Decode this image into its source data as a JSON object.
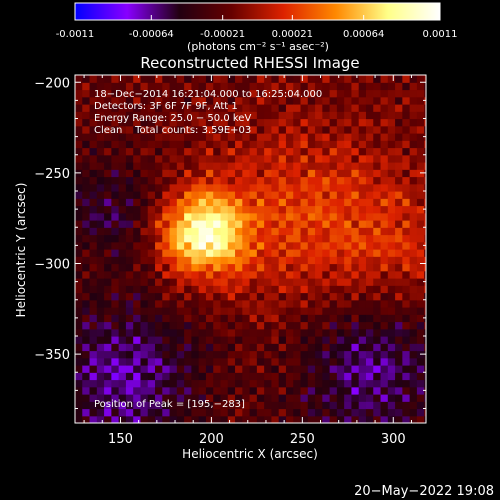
{
  "colorbar": {
    "ticks": [
      "-0.0011",
      "-0.00064",
      "-0.00021",
      "0.00021",
      "0.00064",
      "0.0011"
    ],
    "tick_values": [
      -0.0011,
      -0.00064,
      -0.00021,
      0.00021,
      0.00064,
      0.0011
    ],
    "unit": "(photons cm⁻² s⁻¹ asec⁻²)",
    "range": [
      -0.0011,
      0.0011
    ],
    "colors": [
      "#0000ff",
      "#8800ff",
      "#220011",
      "#660000",
      "#dd2200",
      "#ff8800",
      "#ffff88",
      "#ffffff"
    ]
  },
  "chart_data": {
    "type": "heatmap",
    "title": "Reconstructed RHESSI Image",
    "xlabel": "Heliocentric X (arcsec)",
    "ylabel": "Heliocentric Y (arcsec)",
    "xlim": [
      125,
      318
    ],
    "ylim": [
      -388,
      -196
    ],
    "x_ticks": [
      150,
      200,
      250,
      300
    ],
    "y_ticks": [
      -200,
      -250,
      -300,
      -350
    ],
    "x_tick_labels": [
      "150",
      "200",
      "250",
      "300"
    ],
    "y_tick_labels": [
      "−200",
      "−250",
      "−300",
      "−350"
    ],
    "peak": [
      195,
      -283
    ],
    "annotations": [
      "18−Dec−2014 16:21:04.000 to 16:25:04.000",
      "Detectors: 3F 6F 7F 9F, Att 1",
      "Energy Range: 25.0 − 50.0 keV",
      "Clean    Total counts: 3.59E+03"
    ],
    "peak_label": "Position of Peak = [195,−283]"
  },
  "timestamp": "20−May−2022 19:08"
}
